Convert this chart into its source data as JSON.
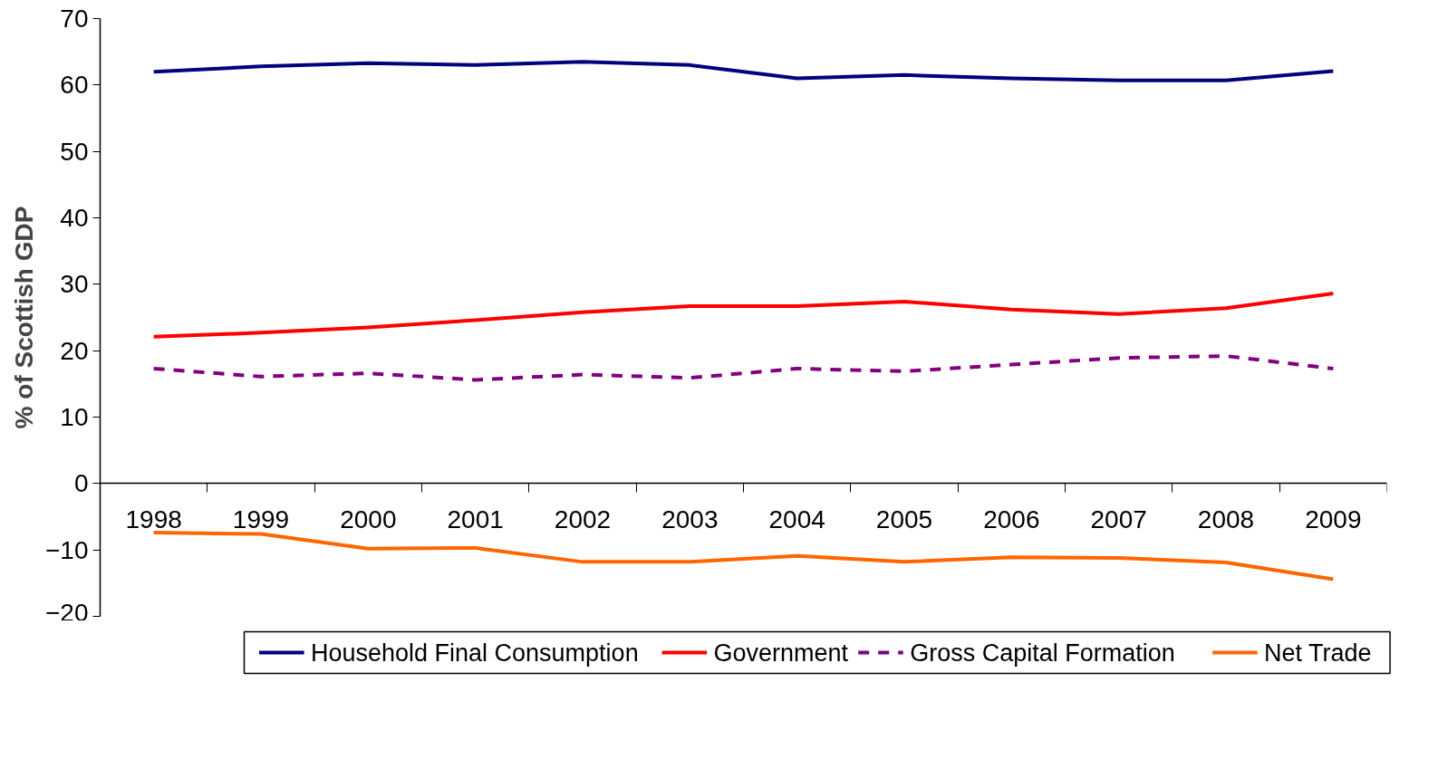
{
  "chart_data": {
    "type": "line",
    "ylabel": "% of Scottish GDP",
    "categories": [
      "1998",
      "1999",
      "2000",
      "2001",
      "2002",
      "2003",
      "2004",
      "2005",
      "2006",
      "2007",
      "2008",
      "2009"
    ],
    "series": [
      {
        "name": "Household Final Consumption",
        "color": "#000080",
        "line_style": "solid",
        "values": [
          62.0,
          62.8,
          63.3,
          63.0,
          63.5,
          63.0,
          61.0,
          61.5,
          61.0,
          60.7,
          60.7,
          62.1
        ]
      },
      {
        "name": "Government",
        "color": "#ff0000",
        "line_style": "solid",
        "values": [
          22.1,
          22.7,
          23.5,
          24.6,
          25.8,
          26.7,
          26.7,
          27.4,
          26.2,
          25.5,
          26.4,
          28.6
        ]
      },
      {
        "name": "Gross Capital Formation",
        "color": "#800080",
        "line_style": "dashed",
        "values": [
          17.3,
          16.1,
          16.6,
          15.6,
          16.4,
          15.9,
          17.3,
          16.9,
          17.9,
          18.9,
          19.2,
          17.3
        ]
      },
      {
        "name": "Net Trade",
        "color": "#ff6600",
        "line_style": "solid",
        "values": [
          -7.4,
          -7.6,
          -9.8,
          -9.7,
          -11.8,
          -11.8,
          -10.9,
          -11.8,
          -11.1,
          -11.2,
          -11.9,
          -14.4
        ]
      }
    ],
    "ylim": [
      -20,
      70
    ],
    "yticks": [
      -20,
      -10,
      0,
      10,
      20,
      30,
      40,
      50,
      60,
      70
    ],
    "grid": false,
    "legend": "bottom",
    "marker": "none"
  }
}
